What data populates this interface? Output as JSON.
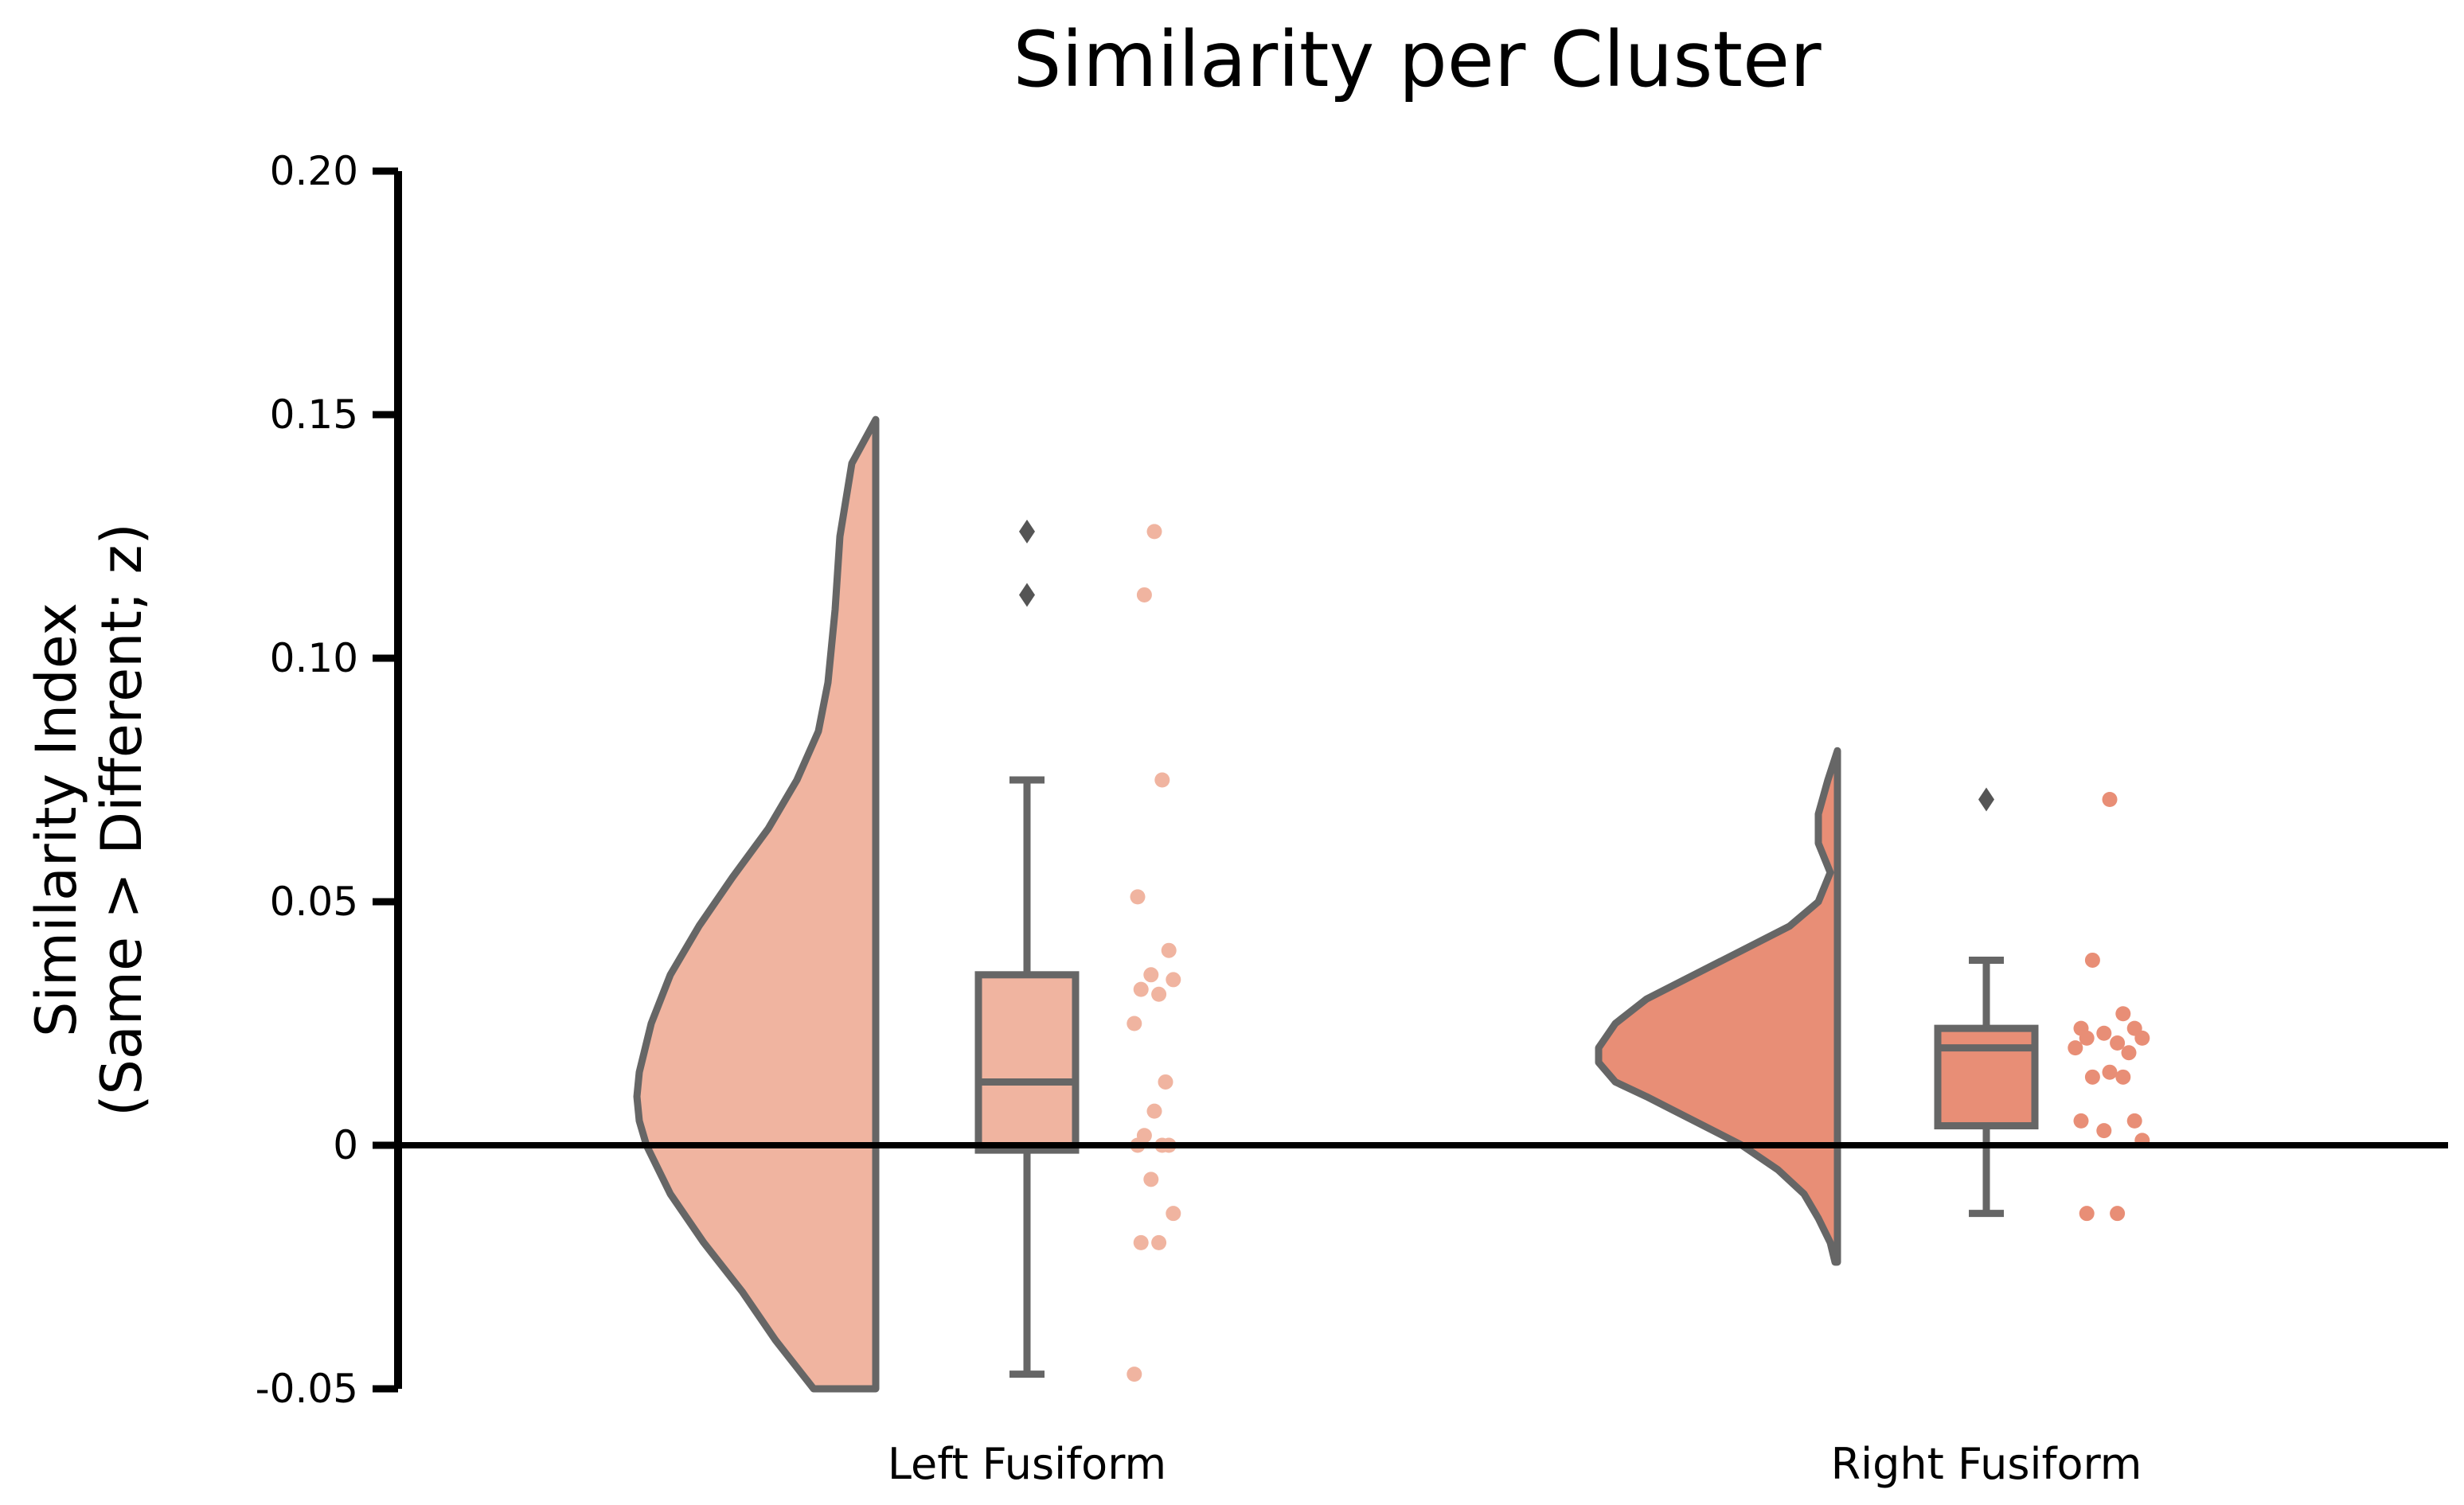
{
  "chart_data": {
    "type": "raincloud",
    "title": "Similarity per Cluster",
    "ylabel_lines": [
      "Similarity Index",
      "(Same > Different; z)"
    ],
    "xlabel": "",
    "ylim": [
      -0.05,
      0.2
    ],
    "yticks": [
      {
        "value": 0.2,
        "label": "0.20"
      },
      {
        "value": 0.15,
        "label": "0.15"
      },
      {
        "value": 0.1,
        "label": "0.10"
      },
      {
        "value": 0.05,
        "label": "0.05"
      },
      {
        "value": 0.0,
        "label": "0"
      },
      {
        "value": -0.05,
        "label": "-0.05"
      }
    ],
    "grid": false,
    "reference_line_y": 0,
    "categories": [
      "Left Fusiform",
      "Right Fusiform"
    ],
    "groups": [
      {
        "name": "Left Fusiform",
        "color": "#f0b4a0",
        "box": {
          "whisker_low": -0.047,
          "q1": -0.001,
          "median": 0.013,
          "q3": 0.035,
          "whisker_high": 0.075
        },
        "outliers": [
          0.126,
          0.113
        ],
        "points": [
          0.126,
          0.113,
          0.075,
          0.051,
          0.04,
          0.035,
          0.034,
          0.032,
          0.031,
          0.025,
          0.013,
          0.007,
          0.002,
          0.0,
          0.0,
          0.0,
          -0.007,
          -0.014,
          -0.02,
          -0.02,
          -0.047
        ],
        "density_profile": [
          [
            0.149,
            0.0
          ],
          [
            0.14,
            0.1
          ],
          [
            0.125,
            0.15
          ],
          [
            0.11,
            0.17
          ],
          [
            0.095,
            0.2
          ],
          [
            0.085,
            0.24
          ],
          [
            0.075,
            0.33
          ],
          [
            0.065,
            0.45
          ],
          [
            0.055,
            0.6
          ],
          [
            0.045,
            0.74
          ],
          [
            0.035,
            0.86
          ],
          [
            0.025,
            0.94
          ],
          [
            0.015,
            0.99
          ],
          [
            0.01,
            1.0
          ],
          [
            0.005,
            0.99
          ],
          [
            0.0,
            0.96
          ],
          [
            -0.01,
            0.86
          ],
          [
            -0.02,
            0.72
          ],
          [
            -0.03,
            0.56
          ],
          [
            -0.04,
            0.42
          ],
          [
            -0.05,
            0.26
          ]
        ]
      },
      {
        "name": "Right Fusiform",
        "color": "#e88e76",
        "box": {
          "whisker_low": -0.014,
          "q1": 0.004,
          "median": 0.02,
          "q3": 0.024,
          "whisker_high": 0.038
        },
        "outliers": [
          0.071
        ],
        "points": [
          0.071,
          0.038,
          0.027,
          0.024,
          0.024,
          0.023,
          0.022,
          0.022,
          0.021,
          0.02,
          0.019,
          0.015,
          0.014,
          0.014,
          0.005,
          0.005,
          0.003,
          0.001,
          -0.014,
          -0.014
        ],
        "density_profile": [
          [
            0.081,
            0.0
          ],
          [
            0.075,
            0.04
          ],
          [
            0.068,
            0.08
          ],
          [
            0.062,
            0.08
          ],
          [
            0.056,
            0.03
          ],
          [
            0.05,
            0.08
          ],
          [
            0.045,
            0.2
          ],
          [
            0.04,
            0.4
          ],
          [
            0.035,
            0.6
          ],
          [
            0.03,
            0.8
          ],
          [
            0.025,
            0.93
          ],
          [
            0.02,
            1.0
          ],
          [
            0.017,
            1.0
          ],
          [
            0.013,
            0.93
          ],
          [
            0.01,
            0.8
          ],
          [
            0.005,
            0.6
          ],
          [
            0.0,
            0.4
          ],
          [
            -0.005,
            0.25
          ],
          [
            -0.01,
            0.14
          ],
          [
            -0.015,
            0.08
          ],
          [
            -0.02,
            0.03
          ],
          [
            -0.024,
            0.01
          ]
        ]
      }
    ]
  }
}
